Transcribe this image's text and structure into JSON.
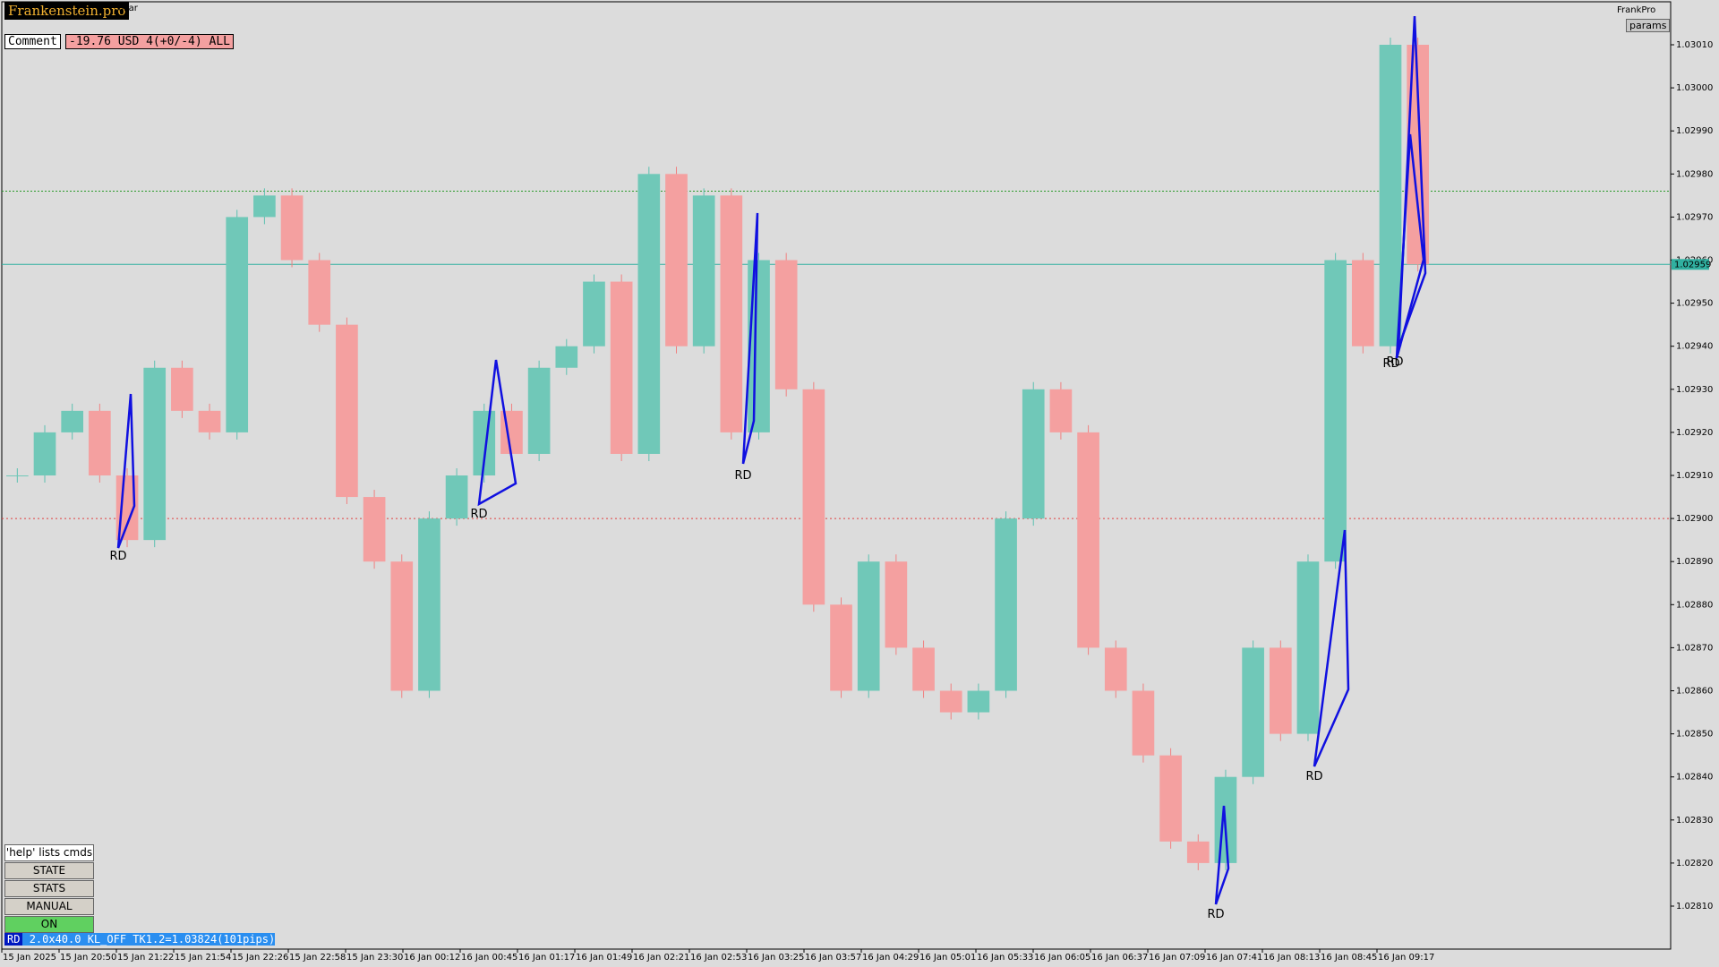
{
  "header": {
    "brand": "Frankenstein.pro",
    "symbol_fragment": "ollar",
    "comment_label": "Comment",
    "comment_value": "-19.76 USD 4(+0/-4) ALL",
    "corner_name": "FrankPro",
    "params": "params"
  },
  "buttons": [
    "'help' lists cmds",
    "STATE",
    "STATS",
    "MANUAL",
    "ON"
  ],
  "status": {
    "tag": "RD",
    "text": "2.0x40.0 KL_OFF TK1.2=1.03824(101pips)"
  },
  "price_axis": [
    "1.03010",
    "1.03000",
    "1.02990",
    "1.02980",
    "1.02970",
    "1.02960",
    "1.02950",
    "1.02940",
    "1.02930",
    "1.02920",
    "1.02910",
    "1.02900",
    "1.02890",
    "1.02880",
    "1.02870",
    "1.02860",
    "1.02850",
    "1.02840",
    "1.02830",
    "1.02820",
    "1.02810"
  ],
  "current_price": "1.02959",
  "time_axis": [
    "15 Jan 2025",
    "15 Jan 20:50",
    "15 Jan 21:22",
    "15 Jan 21:54",
    "15 Jan 22:26",
    "15 Jan 22:58",
    "15 Jan 23:30",
    "16 Jan 00:12",
    "16 Jan 00:45",
    "16 Jan 01:17",
    "16 Jan 01:49",
    "16 Jan 02:21",
    "16 Jan 02:53",
    "16 Jan 03:25",
    "16 Jan 03:57",
    "16 Jan 04:29",
    "16 Jan 05:01",
    "16 Jan 05:33",
    "16 Jan 06:05",
    "16 Jan 06:37",
    "16 Jan 07:09",
    "16 Jan 07:41",
    "16 Jan 08:13",
    "16 Jan 08:45",
    "16 Jan 09:17"
  ],
  "price_path": [
    1.0291,
    1.0292,
    1.02925,
    1.0291,
    1.02895,
    1.02935,
    1.02925,
    1.0292,
    1.0297,
    1.02975,
    1.0296,
    1.02945,
    1.02905,
    1.0289,
    1.0286,
    1.029,
    1.0291,
    1.02925,
    1.02915,
    1.02935,
    1.0294,
    1.02955,
    1.02915,
    1.0298,
    1.0294,
    1.02975,
    1.0292,
    1.0296,
    1.0293,
    1.0288,
    1.0286,
    1.0289,
    1.0287,
    1.0286,
    1.02855,
    1.0286,
    1.029,
    1.0293,
    1.0292,
    1.0287,
    1.0286,
    1.02845,
    1.02825,
    1.0282,
    1.0284,
    1.0287,
    1.0285,
    1.0289,
    1.0296,
    1.0294,
    1.0301,
    1.02959
  ],
  "patterns": [
    {
      "label": "RD"
    },
    {
      "label": "RD"
    },
    {
      "label": "RD"
    },
    {
      "label": "RD"
    },
    {
      "label": "RD"
    },
    {
      "label": "RD"
    },
    {
      "label": "RD"
    }
  ]
}
